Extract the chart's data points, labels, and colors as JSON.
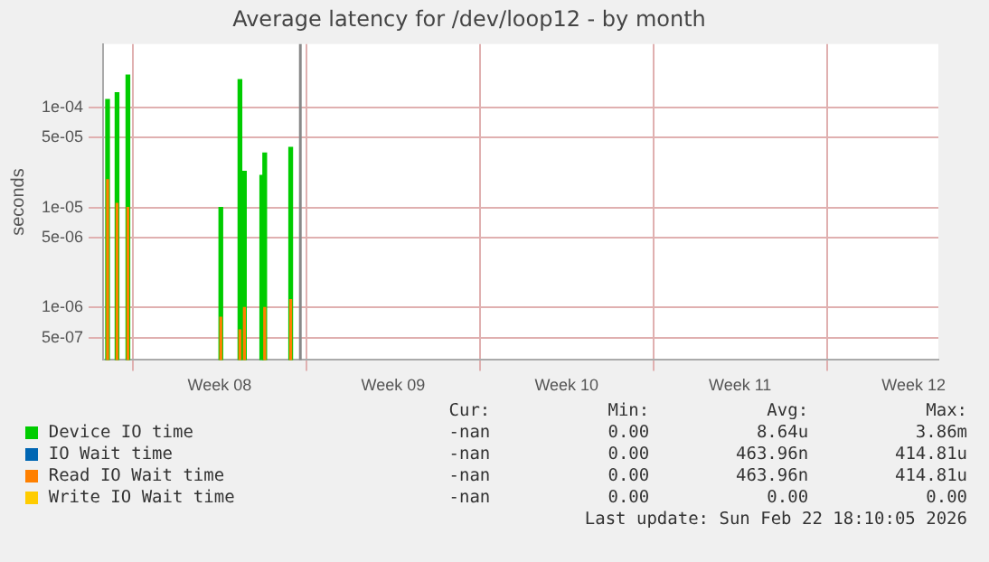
{
  "chart_data": {
    "type": "bar",
    "title": "Average latency for /dev/loop12 - by month",
    "ylabel": "seconds",
    "log": "y",
    "x": [
      "2026-02-14T23:30",
      "2026-02-15T08:40",
      "2026-02-15T19:10",
      "2026-02-19T13:10",
      "2026-02-20T07:40",
      "2026-02-20T12:00",
      "2026-02-21T04:50",
      "2026-02-21T07:40",
      "2026-02-22T08:50"
    ],
    "series": [
      {
        "name": "Device IO time",
        "color": "#00cc00",
        "values": [
          0.00012,
          0.00014,
          0.00021,
          1e-05,
          0.00019,
          2.3e-05,
          2.1e-05,
          3.5e-05,
          4e-05
        ]
      },
      {
        "name": "IO Wait time",
        "color": "#0066b3",
        "values": [
          null,
          null,
          null,
          null,
          null,
          null,
          null,
          null,
          null
        ]
      },
      {
        "name": "Read IO Wait time",
        "color": "#ff8000",
        "values": [
          1.9e-05,
          1.1e-05,
          1e-05,
          8e-07,
          6e-07,
          1e-06,
          null,
          1e-06,
          1.2e-06
        ]
      },
      {
        "name": "Write IO Wait time",
        "color": "#ffcc00",
        "values": [
          null,
          null,
          null,
          null,
          null,
          null,
          null,
          null,
          null
        ]
      }
    ],
    "xlim": [
      "2026-02-14T19:10",
      "2026-03-20T12:00"
    ],
    "xticks": [
      {
        "value": "2026-02-19T12:00",
        "label": "Week 08"
      },
      {
        "value": "2026-02-26T12:00",
        "label": "Week 09"
      },
      {
        "value": "2026-03-05T12:00",
        "label": "Week 10"
      },
      {
        "value": "2026-03-12T12:00",
        "label": "Week 11"
      },
      {
        "value": "2026-03-19T12:00",
        "label": "Week 12"
      }
    ],
    "ylim": [
      3e-07,
      0.00043
    ],
    "yticks": [
      {
        "value": 5e-07,
        "label": "5e-07"
      },
      {
        "value": 1e-06,
        "label": "1e-06"
      },
      {
        "value": 5e-06,
        "label": "5e-06"
      },
      {
        "value": 1e-05,
        "label": "1e-05"
      },
      {
        "value": 5e-05,
        "label": "5e-05"
      },
      {
        "value": 0.0001,
        "label": "1e-04"
      }
    ],
    "ref_lines": [
      {
        "axis": "x",
        "value": "2026-02-22T18:10",
        "color": "#888888"
      }
    ],
    "grid": true,
    "legend": "bottom",
    "annotations": [
      "Cur:",
      "Min:",
      "Avg:",
      "Max:",
      "-nan",
      "0.00",
      "8.64u",
      "3.86m",
      "-nan",
      "0.00",
      "463.96n",
      "414.81u",
      "-nan",
      "0.00",
      "463.96n",
      "414.81u",
      "-nan",
      "0.00",
      "0.00",
      "0.00",
      "Last update: Sun Feb 22 18:10:05 2026"
    ]
  }
}
